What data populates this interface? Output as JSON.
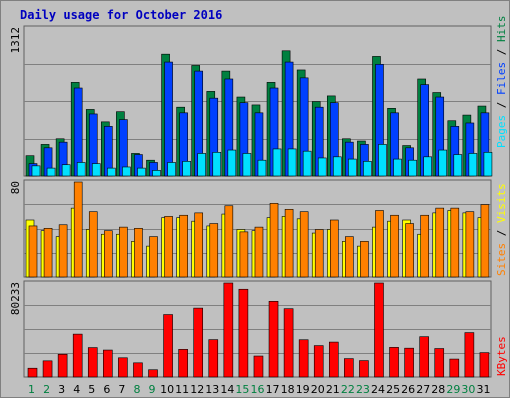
{
  "title": "Daily usage for October 2016",
  "chart_data": {
    "type": "bar",
    "categories": [
      "1",
      "2",
      "3",
      "4",
      "5",
      "6",
      "7",
      "8",
      "9",
      "10",
      "11",
      "12",
      "13",
      "14",
      "15",
      "16",
      "17",
      "18",
      "19",
      "20",
      "21",
      "22",
      "23",
      "24",
      "25",
      "26",
      "27",
      "28",
      "29",
      "30",
      "31"
    ],
    "weekend_days": [
      "1",
      "2",
      "8",
      "9",
      "15",
      "16",
      "22",
      "23",
      "29",
      "30"
    ],
    "panels": [
      {
        "name": "hits-files-pages",
        "ymax_label": "1312",
        "ymax": 1312,
        "series": [
          {
            "name": "Hits",
            "color": "#008040",
            "values": [
              180,
              280,
              330,
              830,
              590,
              480,
              570,
              200,
              140,
              1080,
              610,
              980,
              750,
              930,
              700,
              630,
              830,
              1110,
              940,
              660,
              710,
              330,
              310,
              1060,
              600,
              270,
              860,
              740,
              490,
              540,
              620
            ]
          },
          {
            "name": "Files",
            "color": "#0040ff",
            "values": [
              110,
              250,
              300,
              780,
              550,
              440,
              500,
              190,
              120,
              1010,
              560,
              930,
              690,
              860,
              650,
              560,
              780,
              1010,
              870,
              610,
              650,
              300,
              280,
              990,
              560,
              250,
              810,
              700,
              440,
              470,
              560
            ]
          },
          {
            "name": "Pages",
            "color": "#00e0ff",
            "values": [
              90,
              70,
              100,
              120,
              110,
              70,
              80,
              70,
              50,
              120,
              130,
              200,
              210,
              230,
              200,
              140,
              240,
              240,
              220,
              160,
              170,
              150,
              130,
              280,
              150,
              140,
              170,
              230,
              190,
              200,
              210
            ]
          }
        ]
      },
      {
        "name": "visits-sites",
        "ymax_label": "80",
        "ymax": 80,
        "series": [
          {
            "name": "Visits",
            "color": "#ffff00",
            "values": [
              48,
              39,
              34,
              58,
              40,
              36,
              36,
              30,
              26,
              50,
              50,
              47,
              43,
              53,
              40,
              39,
              50,
              51,
              49,
              37,
              40,
              30,
              26,
              42,
              47,
              48,
              36,
              54,
              56,
              54,
              50
            ]
          },
          {
            "name": "Sites",
            "color": "#ff8000",
            "values": [
              43,
              41,
              44,
              80,
              55,
              39,
              42,
              41,
              34,
              51,
              52,
              54,
              45,
              60,
              38,
              42,
              62,
              57,
              55,
              40,
              48,
              34,
              30,
              56,
              52,
              45,
              52,
              58,
              58,
              55,
              61
            ]
          }
        ]
      },
      {
        "name": "kbytes",
        "ymax_label": "80233",
        "ymax": 80233,
        "series": [
          {
            "name": "KBytes",
            "color": "#ff0000",
            "values": [
              7500,
              13800,
              19400,
              36600,
              25100,
              23000,
              16400,
              12100,
              6200,
              53300,
              23600,
              58800,
              31900,
              80233,
              74900,
              17900,
              64600,
              58300,
              31800,
              26800,
              29800,
              15700,
              14000,
              80233,
              25300,
              24600,
              34400,
              24300,
              15300,
              37900,
              20800
            ]
          }
        ]
      }
    ]
  }
}
